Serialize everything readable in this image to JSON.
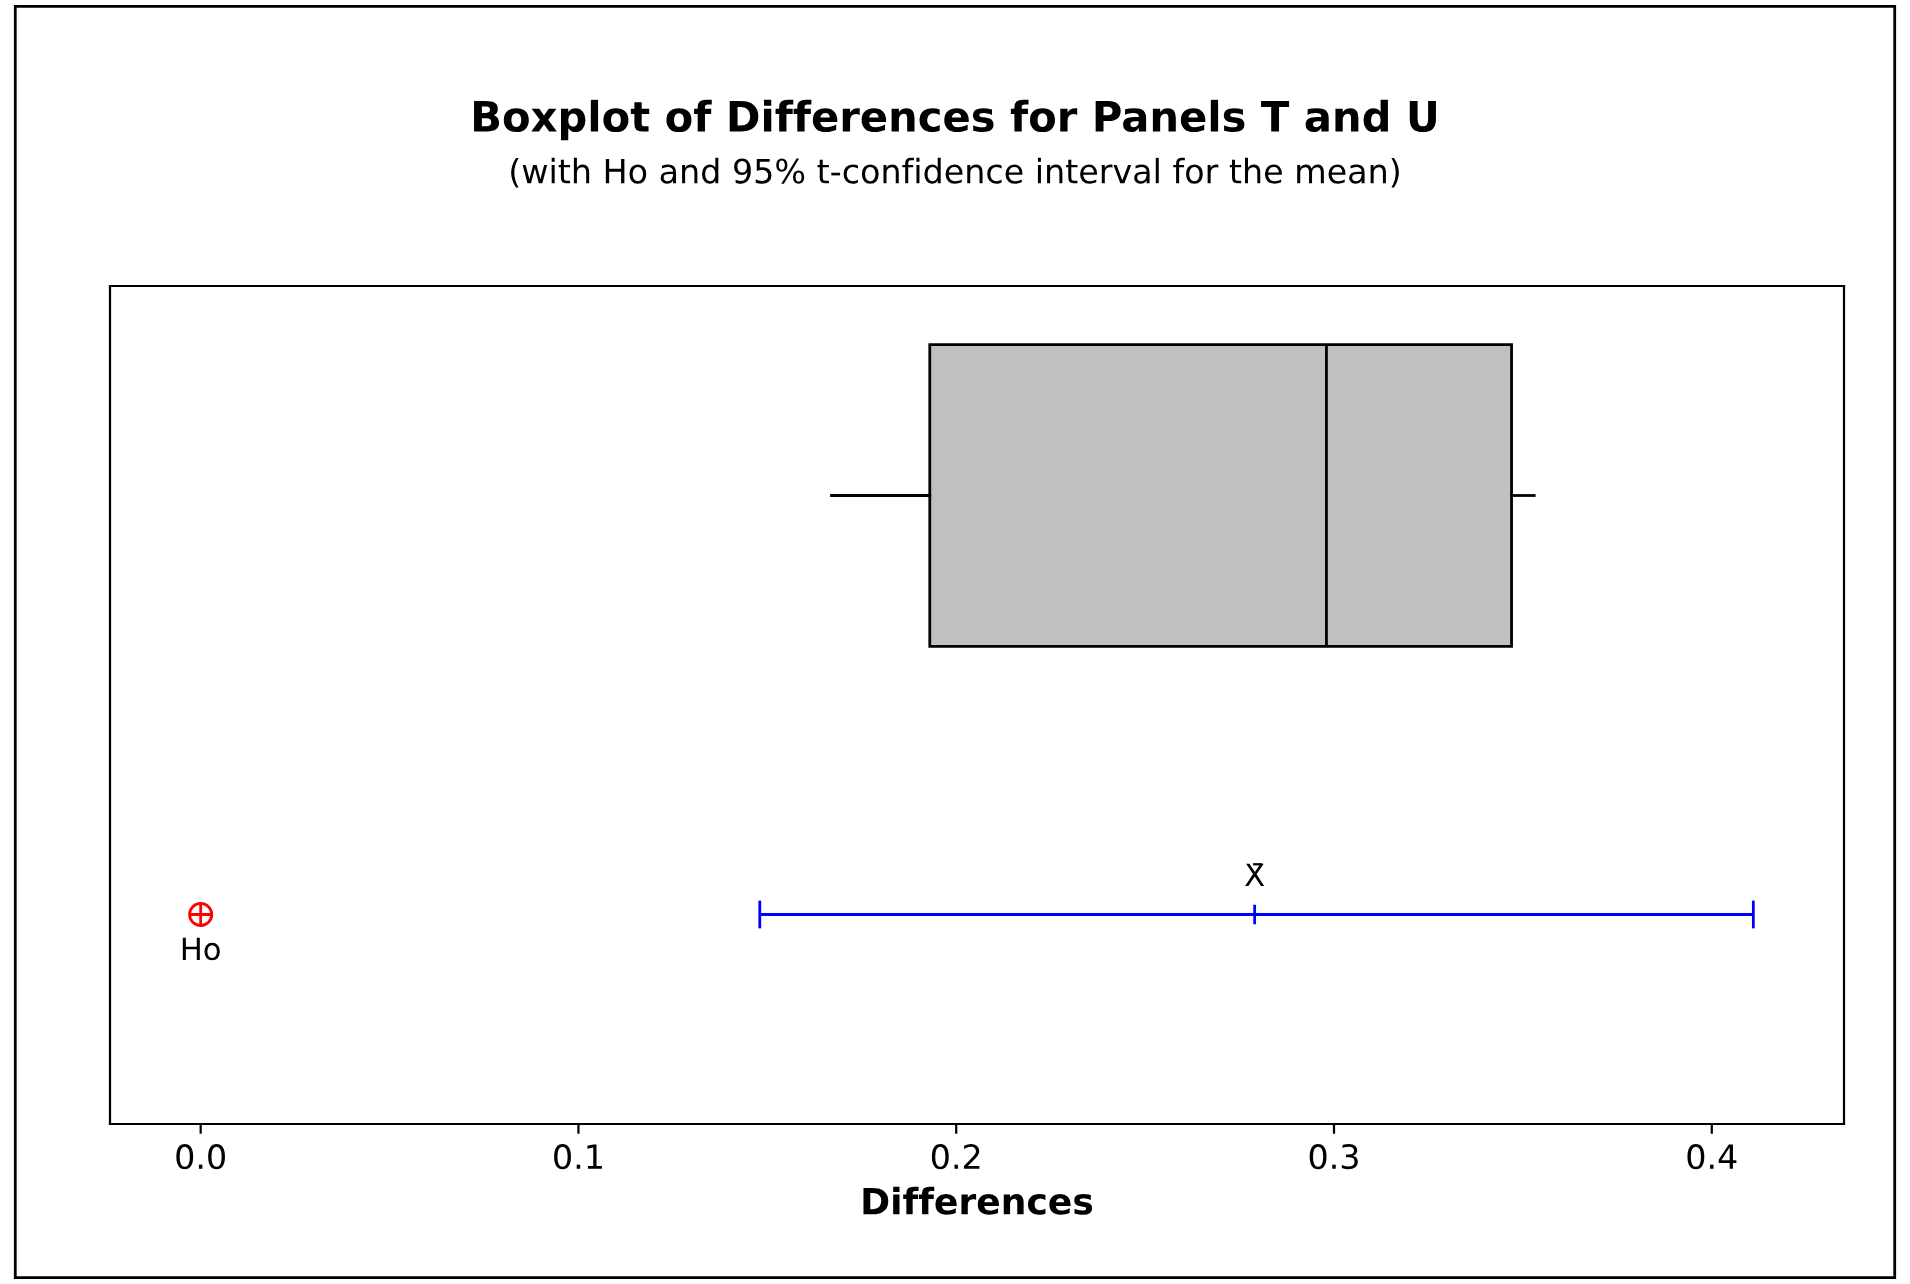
{
  "chart_data": {
    "type": "box",
    "orientation": "horizontal",
    "title": "Boxplot of Differences for Panels T and U",
    "subtitle": "(with Ho and 95% t-confidence interval for the mean)",
    "xlabel": "Differences",
    "categories": [
      null,
      null
    ],
    "boxes": [
      {
        "low": 0.167,
        "q1": 0.193,
        "median": 0.298,
        "q3": 0.347,
        "high": 0.353
      },
      null
    ],
    "color": "#c0c0c0",
    "series": [
      {
        "type": "scatter",
        "color": "#0000ff",
        "marker": "cross",
        "values": [
          null,
          0.279
        ],
        "errors": [
          null,
          [
            0.148,
            0.411
          ]
        ]
      },
      {
        "type": "scatter",
        "color": "#ff0000",
        "marker": "circle",
        "values": [
          null,
          0
        ]
      }
    ],
    "annotations": [
      "X̄",
      "Ho"
    ],
    "xlim": [
      -0.024,
      0.435
    ],
    "xticks": [
      {
        "value": 0,
        "label": "0.0"
      },
      {
        "value": 0.1,
        "label": "0.1"
      },
      {
        "value": 0.2,
        "label": "0.2"
      },
      {
        "value": 0.3,
        "label": "0.3"
      },
      {
        "value": 0.4,
        "label": "0.4"
      }
    ],
    "tick_labels": "x",
    "grid": false
  }
}
